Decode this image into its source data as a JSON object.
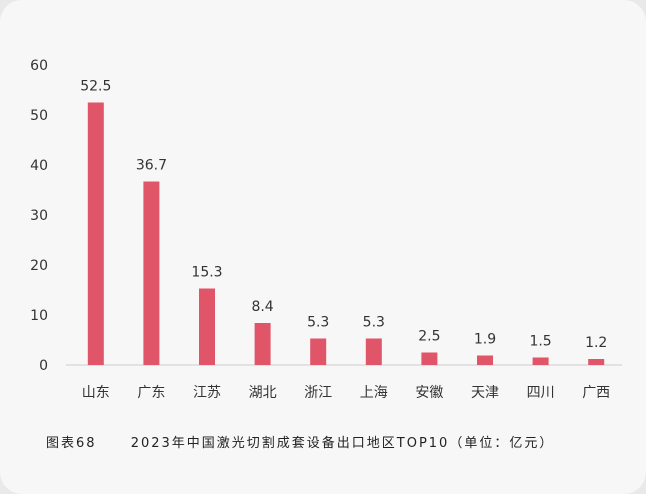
{
  "caption": {
    "figure_label": "图表68",
    "title": "2023年中国激光切割成套设备出口地区TOP10（单位：亿元）"
  },
  "colors": {
    "bar": "#e05568",
    "axis": "#cccccc",
    "text": "#333333"
  },
  "chart_data": {
    "type": "bar",
    "title": "2023年中国激光切割成套设备出口地区TOP10（单位：亿元）",
    "categories": [
      "山东",
      "广东",
      "江苏",
      "湖北",
      "浙江",
      "上海",
      "安徽",
      "天津",
      "四川",
      "广西"
    ],
    "values": [
      52.5,
      36.7,
      15.3,
      8.4,
      5.3,
      5.3,
      2.5,
      1.9,
      1.5,
      1.2
    ],
    "value_labels": [
      "52.5",
      "36.7",
      "15.3",
      "8.4",
      "5.3",
      "5.3",
      "2.5",
      "1.9",
      "1.5",
      "1.2"
    ],
    "yticks": [
      "0",
      "10",
      "20",
      "30",
      "40",
      "50",
      "60"
    ],
    "ylim": [
      0,
      60
    ],
    "xlabel": "",
    "ylabel": "",
    "grid": false,
    "legend": "none"
  }
}
